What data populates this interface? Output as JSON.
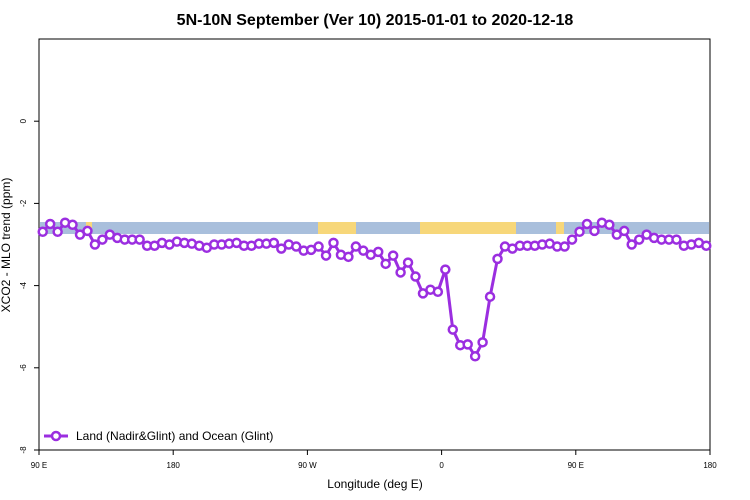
{
  "chart_data": {
    "type": "line",
    "title": "5N-10N September (Ver 10)   2015-01-01 to 2020-12-18",
    "xlabel": "Longitude (deg E)",
    "ylabel": "XCO2 - MLO trend (ppm)",
    "x": [
      92.5,
      97.5,
      102.5,
      107.5,
      112.5,
      117.5,
      122.5,
      127.5,
      132.5,
      137.5,
      142.5,
      147.5,
      152.5,
      157.5,
      162.5,
      167.5,
      172.5,
      177.5,
      182.5,
      187.5,
      192.5,
      197.5,
      202.5,
      207.5,
      212.5,
      217.5,
      222.5,
      227.5,
      232.5,
      237.5,
      242.5,
      247.5,
      252.5,
      257.5,
      262.5,
      267.5,
      272.5,
      277.5,
      282.5,
      287.5,
      292.5,
      297.5,
      302.5,
      307.5,
      312.5,
      317.5,
      322.5,
      327.5,
      332.5,
      337.5,
      342.5,
      347.5,
      352.5,
      357.5,
      362.5,
      367.5,
      372.5,
      377.5,
      382.5,
      387.5,
      392.5,
      397.5,
      402.5,
      407.5,
      412.5,
      417.5,
      422.5,
      427.5,
      432.5,
      437.5,
      442.5,
      447.5,
      452.5,
      457.5,
      462.5,
      467.5,
      472.5,
      477.5,
      482.5,
      487.5,
      492.5,
      497.5,
      502.5,
      507.5,
      512.5,
      517.5,
      522.5,
      527.5,
      532.5,
      537.5
    ],
    "series": [
      {
        "name": "Land (Nadir&Glint) and Ocean (Glint)",
        "color": "#9b2ee0",
        "values": [
          -2.69,
          -2.5,
          -2.69,
          -2.47,
          -2.52,
          -2.76,
          -2.67,
          -3.0,
          -2.88,
          -2.76,
          -2.84,
          -2.88,
          -2.88,
          -2.88,
          -3.03,
          -3.03,
          -2.96,
          -3.0,
          -2.93,
          -2.96,
          -2.98,
          -3.03,
          -3.08,
          -3.0,
          -3.0,
          -2.98,
          -2.96,
          -3.03,
          -3.03,
          -2.98,
          -2.98,
          -2.96,
          -3.1,
          -3.0,
          -3.05,
          -3.15,
          -3.13,
          -3.05,
          -3.27,
          -2.96,
          -3.25,
          -3.3,
          -3.05,
          -3.15,
          -3.25,
          -3.18,
          -3.47,
          -3.27,
          -3.68,
          -3.44,
          -3.78,
          -4.19,
          -4.1,
          -4.15,
          -3.61,
          -5.07,
          -5.45,
          -5.43,
          -5.72,
          -5.38,
          -4.27,
          -3.35,
          -3.05,
          -3.1,
          -3.03,
          -3.03,
          -3.03,
          -3.0,
          -2.98,
          -3.05,
          -3.05,
          -2.88,
          -2.69,
          -2.5,
          -2.67,
          -2.47,
          -2.52,
          -2.76,
          -2.67,
          -3.0,
          -2.88,
          -2.76,
          -2.84,
          -2.88,
          -2.88,
          -2.88,
          -3.03,
          -3.0,
          -2.96,
          -3.03
        ]
      }
    ],
    "xlim": [
      90,
      540
    ],
    "xticks": [
      {
        "value": 90,
        "label": "90 E"
      },
      180,
      {
        "value": 270,
        "label": "90 W"
      },
      {
        "value": 360,
        "label": "0"
      },
      {
        "value": 450,
        "label": "90 E"
      },
      {
        "value": 540,
        "label": "180"
      }
    ],
    "ylim": [
      -8,
      2
    ],
    "yticks": [
      -8,
      -6,
      -4,
      -2,
      0
    ],
    "legend": "bottom-left"
  }
}
